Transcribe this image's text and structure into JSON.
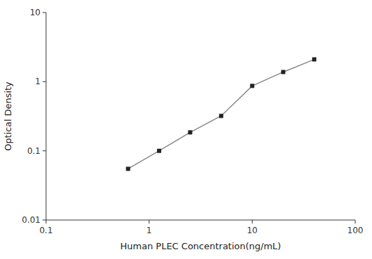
{
  "chart_data": {
    "type": "line",
    "xlabel": "Human PLEC Concentration(ng/mL)",
    "ylabel": "Optical Density",
    "x": [
      0.625,
      1.25,
      2.5,
      5.0,
      10.0,
      20.0,
      40.0
    ],
    "values": [
      0.055,
      0.1,
      0.185,
      0.32,
      0.87,
      1.38,
      2.1
    ],
    "xlim": [
      0.1,
      100
    ],
    "ylim": [
      0.01,
      10
    ],
    "xticks": [
      0.1,
      1,
      10,
      100
    ],
    "yticks": [
      0.01,
      0.1,
      1,
      10
    ],
    "log": true,
    "grid": false,
    "color": "#888888",
    "colors": [
      "#222222",
      "#222222",
      "#222222",
      "#222222",
      "#222222",
      "#222222",
      "#222222"
    ],
    "marker": "square",
    "line_style": "solid"
  }
}
